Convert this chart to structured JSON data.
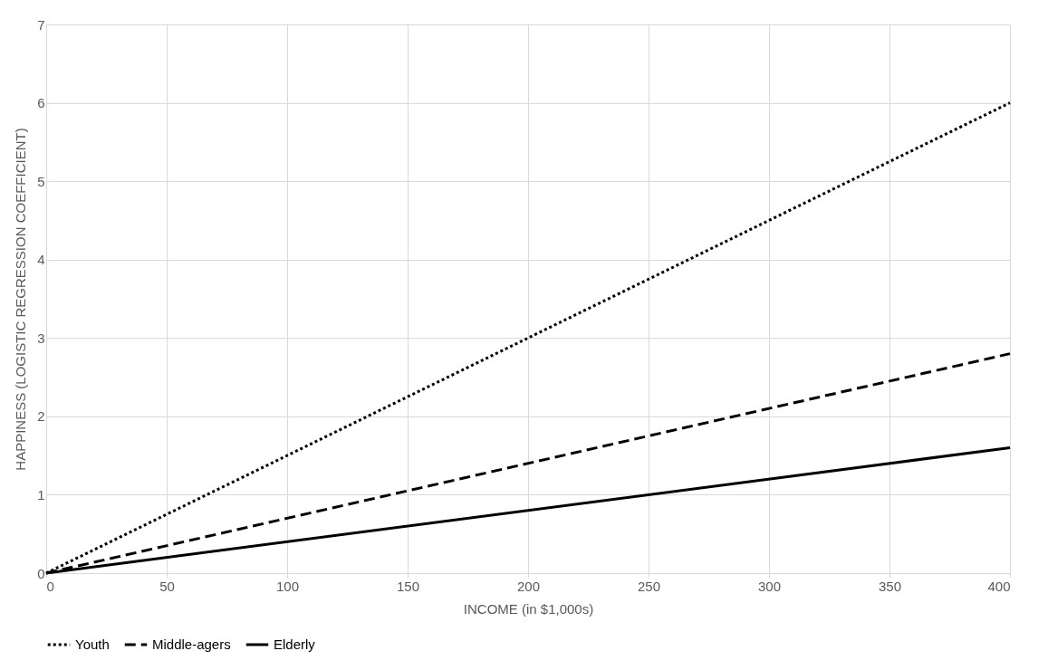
{
  "chart_data": {
    "type": "line",
    "xlabel": "INCOME (in $1,000s)",
    "ylabel": "HAPPINESS (LOGISTIC REGRESSION COEFFICIENT)",
    "xlim": [
      0,
      400
    ],
    "xticks": [
      0,
      50,
      100,
      150,
      200,
      250,
      300,
      350,
      400
    ],
    "ylim": [
      0,
      7
    ],
    "yticks": [
      0,
      1,
      2,
      3,
      4,
      5,
      6,
      7
    ],
    "grid": true,
    "legend": "bottom",
    "marker": "none",
    "x": [
      0,
      400
    ],
    "series": [
      {
        "name": "Youth",
        "color": "#000000",
        "line_style": "dotted",
        "values": [
          0,
          6
        ]
      },
      {
        "name": "Middle-agers",
        "color": "#000000",
        "line_style": "dashed",
        "values": [
          0,
          2.8
        ]
      },
      {
        "name": "Elderly",
        "color": "#000000",
        "line_style": "solid",
        "values": [
          0,
          1.6
        ]
      }
    ]
  }
}
